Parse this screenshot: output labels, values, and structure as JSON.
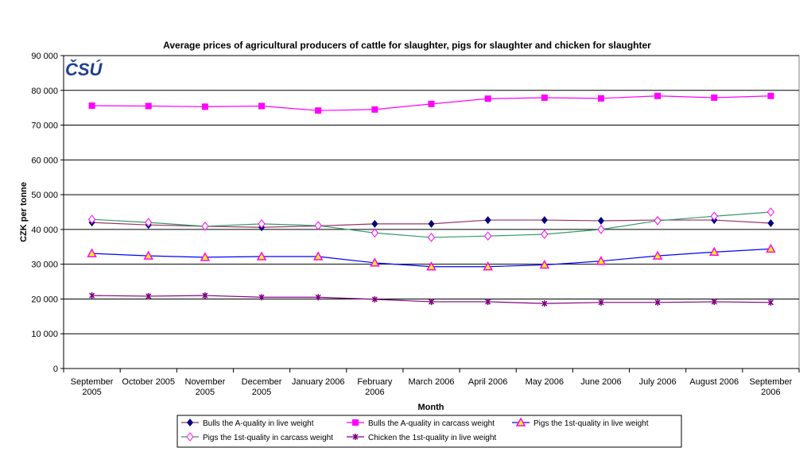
{
  "chart_data": {
    "type": "line",
    "title": "Average prices of agricultural producers of cattle for slaughter, pigs for slaughter and chicken for slaughter",
    "xlabel": "Month",
    "ylabel": "CZK per tonne",
    "ylim": [
      0,
      90000
    ],
    "yticks": [
      0,
      10000,
      20000,
      30000,
      40000,
      50000,
      60000,
      70000,
      80000,
      90000
    ],
    "ytick_labels": [
      "0",
      "10 000",
      "20 000",
      "30 000",
      "40 000",
      "50 000",
      "60 000",
      "70 000",
      "80 000",
      "90 000"
    ],
    "grid": true,
    "legend_placement": "bottom",
    "categories": [
      [
        "September",
        "2005"
      ],
      [
        "October 2005"
      ],
      [
        "November",
        "2005"
      ],
      [
        "December",
        "2005"
      ],
      [
        "January 2006"
      ],
      [
        "February",
        "2006"
      ],
      [
        "March 2006"
      ],
      [
        "April 2006"
      ],
      [
        "May 2006"
      ],
      [
        "June 2006"
      ],
      [
        "July 2006"
      ],
      [
        "August 2006"
      ],
      [
        "September",
        "2006"
      ]
    ],
    "series": [
      {
        "name": "Bulls the A-quality in live weight",
        "line_color": "#993366",
        "marker": "diamond",
        "marker_color": "#000080",
        "values": [
          42000,
          41300,
          40900,
          40600,
          41000,
          41600,
          41600,
          42700,
          42700,
          42500,
          42700,
          42700,
          41800
        ]
      },
      {
        "name": "Bulls the A-quality in carcass weight",
        "line_color": "#FF00FF",
        "marker": "square",
        "marker_color": "#FF00FF",
        "values": [
          75600,
          75500,
          75300,
          75500,
          74200,
          74500,
          76100,
          77600,
          77900,
          77700,
          78400,
          77900,
          78400
        ]
      },
      {
        "name": "Pigs the 1st-quality in live weight",
        "line_color": "#0000FF",
        "marker": "triangle",
        "marker_color": "#FFFF00",
        "values": [
          33100,
          32400,
          32000,
          32200,
          32200,
          30400,
          29300,
          29300,
          29800,
          30900,
          32400,
          33500,
          34400
        ]
      },
      {
        "name": "Pigs the 1st-quality in carcass weight",
        "line_color": "#339966",
        "marker": "diamond-open",
        "marker_color": "#FF00FF",
        "values": [
          42900,
          42000,
          40900,
          41600,
          41100,
          39000,
          37700,
          38100,
          38600,
          40000,
          42500,
          43800,
          45000
        ]
      },
      {
        "name": "Chicken the 1st-quality in live weight",
        "line_color": "#800080",
        "marker": "asterisk",
        "marker_color": "#800080",
        "values": [
          21000,
          20800,
          21000,
          20500,
          20500,
          19900,
          19200,
          19200,
          18700,
          19000,
          19000,
          19200,
          19000
        ]
      }
    ]
  },
  "logo": {
    "text": "ČSÚ",
    "color": "#1F3F8F"
  }
}
